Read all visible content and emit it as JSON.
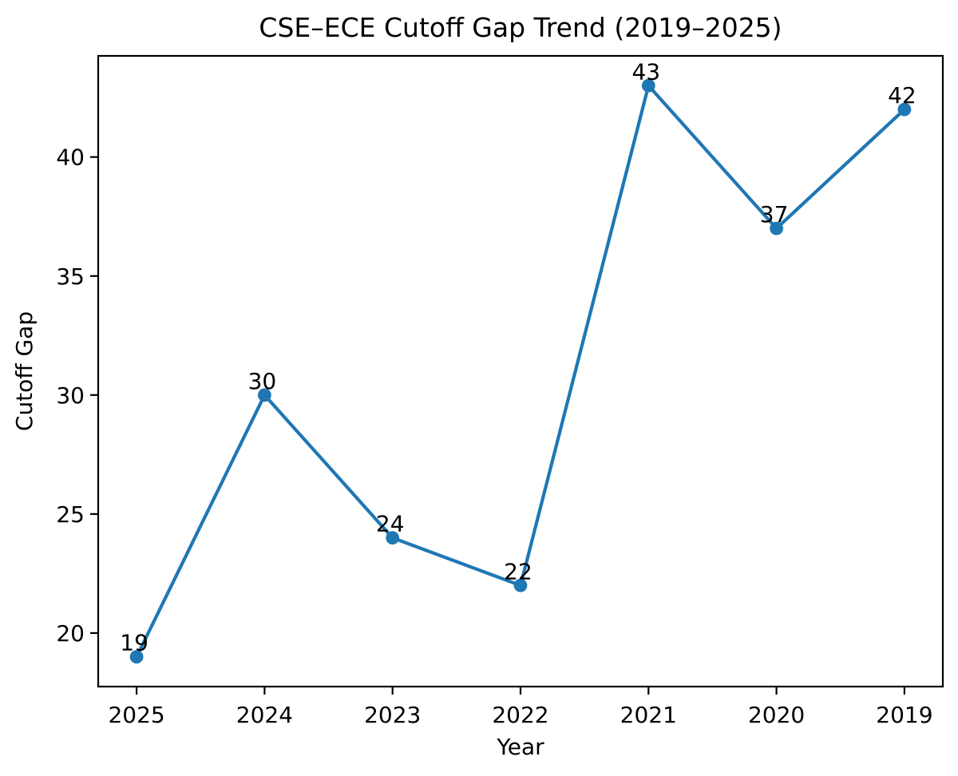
{
  "chart_data": {
    "type": "line",
    "title": "CSE–ECE Cutoff Gap Trend (2019–2025)",
    "xlabel": "Year",
    "ylabel": "Cutoff Gap",
    "categories": [
      "2025",
      "2024",
      "2023",
      "2022",
      "2021",
      "2020",
      "2019"
    ],
    "values": [
      19,
      30,
      24,
      22,
      43,
      37,
      42
    ],
    "point_labels": [
      "19",
      "30",
      "24",
      "22",
      "43",
      "37",
      "42"
    ],
    "yticks": [
      20,
      25,
      30,
      35,
      40
    ],
    "ylim": [
      17.75,
      44.25
    ],
    "xlim": [
      -0.3,
      6.3
    ],
    "grid": false,
    "legend_visible": false,
    "line_color": "#1f77b4",
    "marker_color": "#1f77b4",
    "marker_shape": "circle",
    "axis_color": "#000000",
    "background_color": "#ffffff",
    "text_color": "#000000"
  }
}
